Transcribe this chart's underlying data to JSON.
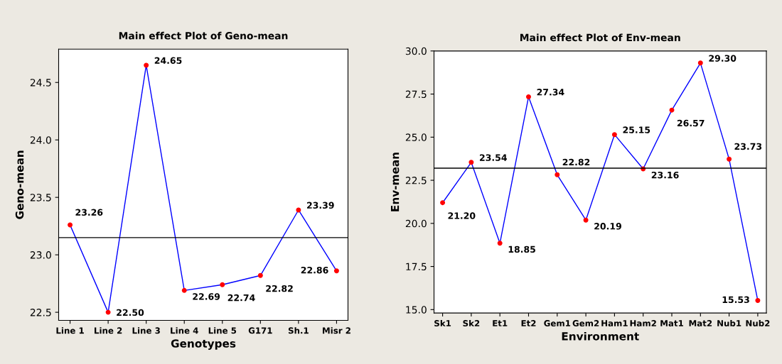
{
  "chart_data": [
    {
      "type": "line",
      "title": "Main effect Plot of Geno-mean",
      "xlabel": "Genotypes",
      "ylabel": "Geno-mean",
      "categories": [
        "Line 1",
        "Line 2",
        "Line 3",
        "Line 4",
        "Line 5",
        "G171",
        "Sh.1",
        "Misr 2"
      ],
      "series": [
        {
          "color": "#0000ff",
          "values": [
            23.26,
            22.5,
            24.65,
            22.69,
            22.74,
            22.82,
            23.39,
            22.86
          ],
          "value_labels": [
            "23.26",
            "22.50",
            "24.65",
            "22.69",
            "22.74",
            "22.82",
            "23.39",
            "22.86"
          ]
        }
      ],
      "ylim": [
        22.43,
        24.79
      ],
      "yticks": [
        {
          "value": 22.5,
          "label": "22.5"
        },
        {
          "value": 23.0,
          "label": "23.0"
        },
        {
          "value": 23.5,
          "label": "23.5"
        },
        {
          "value": 24.0,
          "label": "24.0"
        },
        {
          "value": 24.5,
          "label": "24.5"
        }
      ],
      "ref_lines": [
        {
          "axis": "y",
          "value": 23.15,
          "color": "#000000"
        }
      ],
      "marker": "circle",
      "grid": false,
      "legend": false
    },
    {
      "type": "line",
      "title": "Main effect Plot of Env-mean",
      "xlabel": "Environment",
      "ylabel": "Env-mean",
      "categories": [
        "Sk1",
        "Sk2",
        "Et1",
        "Et2",
        "Gem1",
        "Gem2",
        "Ham1",
        "Ham2",
        "Mat1",
        "Mat2",
        "Nub1",
        "Nub2"
      ],
      "series": [
        {
          "color": "#0000ff",
          "values": [
            21.2,
            23.54,
            18.85,
            27.34,
            22.82,
            20.19,
            25.15,
            23.16,
            26.57,
            29.3,
            23.73,
            15.53
          ],
          "value_labels": [
            "21.20",
            "23.54",
            "18.85",
            "27.34",
            "22.82",
            "20.19",
            "25.15",
            "23.16",
            "26.57",
            "29.30",
            "23.73",
            "15.53"
          ]
        }
      ],
      "ylim": [
        14.8,
        30.0
      ],
      "yticks": [
        {
          "value": 15.0,
          "label": "15.0"
        },
        {
          "value": 17.5,
          "label": "17.5"
        },
        {
          "value": 20.0,
          "label": "20.0"
        },
        {
          "value": 22.5,
          "label": "22.5"
        },
        {
          "value": 25.0,
          "label": "25.0"
        },
        {
          "value": 27.5,
          "label": "27.5"
        },
        {
          "value": 30.0,
          "label": "30.0"
        }
      ],
      "ref_lines": [
        {
          "axis": "y",
          "value": 23.2,
          "color": "#000000"
        }
      ],
      "marker": "circle",
      "grid": false,
      "legend": false
    }
  ]
}
